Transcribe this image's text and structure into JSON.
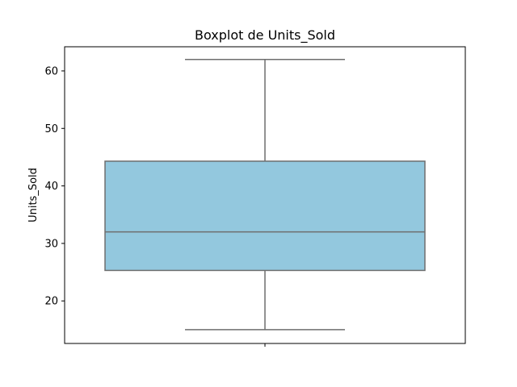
{
  "chart_data": {
    "type": "boxplot",
    "title": "Boxplot de Units_Sold",
    "xlabel": "",
    "ylabel": "Units_Sold",
    "ylim": [
      12.6,
      64.2
    ],
    "yticks": [
      20,
      30,
      40,
      50,
      60
    ],
    "grid": false,
    "legend": "none",
    "box": {
      "whisker_low": 15,
      "q1": 25.3,
      "median": 32,
      "q3": 44.3,
      "whisker_high": 62
    },
    "colors": {
      "box_fill": "#93c8de",
      "line": "#6e6e6e",
      "axes": "#000000"
    }
  }
}
